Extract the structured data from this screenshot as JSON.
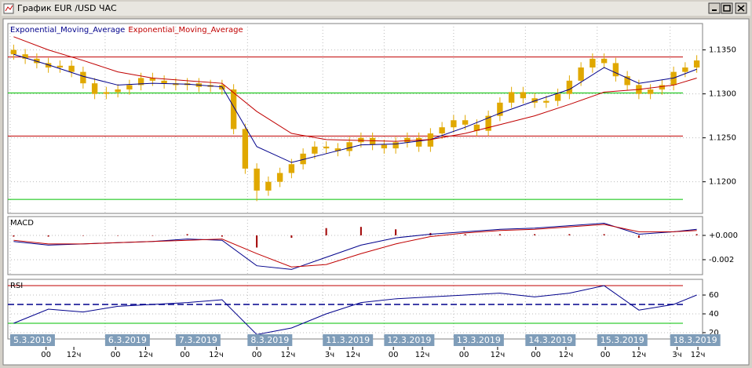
{
  "window": {
    "title": "График EUR /USD ЧАС"
  },
  "chart_data": [
    {
      "type": "candlestick",
      "xlim": [
        -0.5,
        59.5
      ],
      "ylim": [
        1.1164,
        1.138
      ],
      "grid": true,
      "color": "#e0a800",
      "yticks": [
        {
          "value": 1.12,
          "label": "1.1200"
        },
        {
          "value": 1.125,
          "label": "1.1250"
        },
        {
          "value": 1.13,
          "label": "1.1300"
        },
        {
          "value": 1.135,
          "label": "1.1350"
        }
      ],
      "open": [
        1.135,
        1.1345,
        1.134,
        1.1335,
        1.133,
        1.1332,
        1.1325,
        1.1312,
        1.13,
        1.1302,
        1.1305,
        1.131,
        1.1318,
        1.1315,
        1.1312,
        1.131,
        1.1312,
        1.1308,
        1.131,
        1.1305,
        1.126,
        1.1215,
        1.119,
        1.12,
        1.121,
        1.122,
        1.1232,
        1.124,
        1.1238,
        1.1235,
        1.1245,
        1.125,
        1.1242,
        1.1238,
        1.1245,
        1.125,
        1.124,
        1.1255,
        1.1262,
        1.127,
        1.1265,
        1.1258,
        1.1275,
        1.129,
        1.1302,
        1.1295,
        1.129,
        1.1292,
        1.13,
        1.1315,
        1.133,
        1.134,
        1.1335,
        1.132,
        1.131,
        1.13,
        1.1305,
        1.131,
        1.1325,
        1.133
      ],
      "high": [
        1.1356,
        1.1351,
        1.1346,
        1.1341,
        1.1338,
        1.1338,
        1.1331,
        1.1318,
        1.1308,
        1.1311,
        1.1316,
        1.1324,
        1.1324,
        1.1321,
        1.1318,
        1.1318,
        1.1318,
        1.1316,
        1.1316,
        1.1311,
        1.1266,
        1.1221,
        1.1206,
        1.1216,
        1.1226,
        1.1238,
        1.1246,
        1.1246,
        1.1244,
        1.1251,
        1.1256,
        1.1256,
        1.1248,
        1.1251,
        1.1256,
        1.1256,
        1.1261,
        1.1268,
        1.1276,
        1.1276,
        1.1271,
        1.1281,
        1.1296,
        1.1308,
        1.1308,
        1.1301,
        1.1298,
        1.1306,
        1.1321,
        1.1336,
        1.1346,
        1.1346,
        1.1341,
        1.1326,
        1.1316,
        1.1311,
        1.1316,
        1.1331,
        1.1336,
        1.1344
      ],
      "low": [
        1.1339,
        1.1334,
        1.1329,
        1.1324,
        1.1324,
        1.1319,
        1.1306,
        1.1294,
        1.1294,
        1.1296,
        1.1299,
        1.1304,
        1.1309,
        1.1306,
        1.1304,
        1.1304,
        1.1302,
        1.1302,
        1.1299,
        1.1254,
        1.1209,
        1.1178,
        1.1184,
        1.1194,
        1.1204,
        1.1214,
        1.1226,
        1.1232,
        1.1229,
        1.1229,
        1.1239,
        1.1236,
        1.1232,
        1.1232,
        1.1239,
        1.1234,
        1.1234,
        1.1249,
        1.1256,
        1.1259,
        1.1252,
        1.1252,
        1.1269,
        1.1284,
        1.1289,
        1.1284,
        1.1284,
        1.1286,
        1.1294,
        1.1309,
        1.1324,
        1.1329,
        1.1314,
        1.1304,
        1.1294,
        1.1294,
        1.1299,
        1.1304,
        1.1319,
        1.1324
      ],
      "close": [
        1.1345,
        1.134,
        1.1335,
        1.133,
        1.1332,
        1.1325,
        1.1312,
        1.13,
        1.1302,
        1.1305,
        1.131,
        1.1318,
        1.1315,
        1.1312,
        1.131,
        1.1312,
        1.1308,
        1.131,
        1.1305,
        1.126,
        1.1215,
        1.119,
        1.12,
        1.121,
        1.122,
        1.1232,
        1.124,
        1.1238,
        1.1235,
        1.1245,
        1.125,
        1.1242,
        1.1238,
        1.1245,
        1.125,
        1.124,
        1.1255,
        1.1262,
        1.127,
        1.1265,
        1.1258,
        1.1275,
        1.129,
        1.1302,
        1.1295,
        1.129,
        1.1292,
        1.13,
        1.1315,
        1.133,
        1.134,
        1.1335,
        1.132,
        1.131,
        1.13,
        1.1305,
        1.131,
        1.1325,
        1.133,
        1.1338
      ],
      "hlines": [
        {
          "value": 1.1342,
          "color": "#c00000"
        },
        {
          "value": 1.1301,
          "color": "#00c000"
        },
        {
          "value": 1.1252,
          "color": "#c00000"
        },
        {
          "value": 1.118,
          "color": "#00c000"
        }
      ],
      "series": [
        {
          "name": "Exponential_Moving_Average",
          "color": "#00008b",
          "x": [
            0,
            3,
            6,
            9,
            12,
            15,
            18,
            21,
            24,
            27,
            30,
            33,
            36,
            39,
            42,
            45,
            48,
            51,
            54,
            57,
            59
          ],
          "values": [
            1.1345,
            1.1333,
            1.132,
            1.131,
            1.1312,
            1.1311,
            1.1308,
            1.124,
            1.1222,
            1.1232,
            1.1242,
            1.1243,
            1.1248,
            1.1262,
            1.1278,
            1.1292,
            1.1305,
            1.133,
            1.1312,
            1.1318,
            1.1328
          ]
        },
        {
          "name": "Exponential_Moving_Average",
          "color": "#c00000",
          "x": [
            0,
            3,
            6,
            9,
            12,
            15,
            18,
            21,
            24,
            27,
            30,
            33,
            36,
            39,
            42,
            45,
            48,
            51,
            54,
            57,
            59
          ],
          "values": [
            1.1365,
            1.135,
            1.1338,
            1.1325,
            1.1318,
            1.1315,
            1.1312,
            1.128,
            1.1255,
            1.1248,
            1.1247,
            1.1246,
            1.1248,
            1.1255,
            1.1265,
            1.1275,
            1.1288,
            1.1302,
            1.1305,
            1.131,
            1.1318
          ]
        }
      ]
    },
    {
      "type": "macd",
      "label": "MACD",
      "xlim": [
        -0.5,
        59.5
      ],
      "ylim": [
        -0.00323,
        0.00155
      ],
      "grid": true,
      "yticks": [
        {
          "value": 0,
          "label": "+0.000"
        },
        {
          "value": -0.002,
          "label": "-0.002"
        }
      ],
      "x": [
        0,
        3,
        6,
        9,
        12,
        15,
        18,
        21,
        24,
        27,
        30,
        33,
        36,
        39,
        42,
        45,
        48,
        51,
        54,
        57,
        59
      ],
      "histogram": {
        "color": "#a00000",
        "values": [
          -0.0001,
          -0.0001,
          0,
          0,
          0,
          0.0001,
          -0.0001,
          -0.001,
          -0.0002,
          0.0006,
          0.0007,
          0.0005,
          0.0002,
          0.0001,
          0.0001,
          0.0001,
          0.0001,
          0.0001,
          -0.0002,
          0,
          0.0001
        ]
      },
      "series": [
        {
          "color": "#00008b",
          "values": [
            -0.0005,
            -0.0008,
            -0.0007,
            -0.0006,
            -0.0005,
            -0.0003,
            -0.0004,
            -0.0025,
            -0.0028,
            -0.0018,
            -0.0008,
            -0.0002,
            0.0001,
            0.0003,
            0.0005,
            0.0006,
            0.0008,
            0.001,
            0.0001,
            0.0003,
            0.0005
          ]
        },
        {
          "color": "#c00000",
          "values": [
            -0.0004,
            -0.0007,
            -0.0007,
            -0.0006,
            -0.0005,
            -0.0004,
            -0.0003,
            -0.0015,
            -0.0026,
            -0.0024,
            -0.0015,
            -0.0007,
            -0.0001,
            0.0002,
            0.0004,
            0.0005,
            0.0007,
            0.0009,
            0.0003,
            0.0003,
            0.0004
          ]
        }
      ]
    },
    {
      "type": "rsi",
      "label": "RSI",
      "xlim": [
        -0.5,
        59.5
      ],
      "ylim": [
        13.3,
        76.7
      ],
      "grid": true,
      "yticks": [
        20,
        40,
        60
      ],
      "hlines": [
        {
          "value": 70,
          "color": "#c00000"
        },
        {
          "value": 50,
          "color": "#00008b",
          "dashed": true
        },
        {
          "value": 30,
          "color": "#00c000"
        }
      ],
      "x": [
        0,
        3,
        6,
        9,
        12,
        15,
        18,
        21,
        24,
        27,
        30,
        33,
        36,
        39,
        42,
        45,
        48,
        51,
        54,
        57,
        59
      ],
      "series": [
        {
          "color": "#00008b",
          "values": [
            30,
            45,
            42,
            48,
            50,
            52,
            55,
            18,
            25,
            40,
            52,
            56,
            58,
            60,
            62,
            58,
            62,
            70,
            44,
            50,
            60
          ]
        }
      ]
    }
  ],
  "x_axis": {
    "date_labels": [
      {
        "x": -0.3,
        "label": "5.3.2019"
      },
      {
        "x": 7.9,
        "label": "6.3.2019"
      },
      {
        "x": 14,
        "label": "7.3.2019"
      },
      {
        "x": 20.2,
        "label": "8.3.2019"
      },
      {
        "x": 26.7,
        "label": "11.3.2019"
      },
      {
        "x": 32,
        "label": "12.3.2019"
      },
      {
        "x": 38,
        "label": "13.3.2019"
      },
      {
        "x": 44.2,
        "label": "14.3.2019"
      },
      {
        "x": 50.4,
        "label": "15.3.2019"
      },
      {
        "x": 56.7,
        "label": "18.3.2019"
      }
    ],
    "hour_labels": [
      {
        "x": 2.8,
        "label": "00"
      },
      {
        "x": 5.2,
        "label": "12ч"
      },
      {
        "x": 8.8,
        "label": "00"
      },
      {
        "x": 11.4,
        "label": "12ч"
      },
      {
        "x": 14.8,
        "label": "00"
      },
      {
        "x": 17.5,
        "label": "12ч"
      },
      {
        "x": 21,
        "label": "00"
      },
      {
        "x": 23.7,
        "label": "12ч"
      },
      {
        "x": 27.3,
        "label": "3ч"
      },
      {
        "x": 29.3,
        "label": "12ч"
      },
      {
        "x": 32.8,
        "label": "00"
      },
      {
        "x": 35.3,
        "label": "12ч"
      },
      {
        "x": 38.9,
        "label": "00"
      },
      {
        "x": 41.8,
        "label": "12ч"
      },
      {
        "x": 45.1,
        "label": "00"
      },
      {
        "x": 47.7,
        "label": "12ч"
      },
      {
        "x": 51.1,
        "label": "00"
      },
      {
        "x": 54,
        "label": "12ч"
      },
      {
        "x": 57.3,
        "label": "3ч"
      },
      {
        "x": 59.1,
        "label": "12ч"
      }
    ]
  }
}
